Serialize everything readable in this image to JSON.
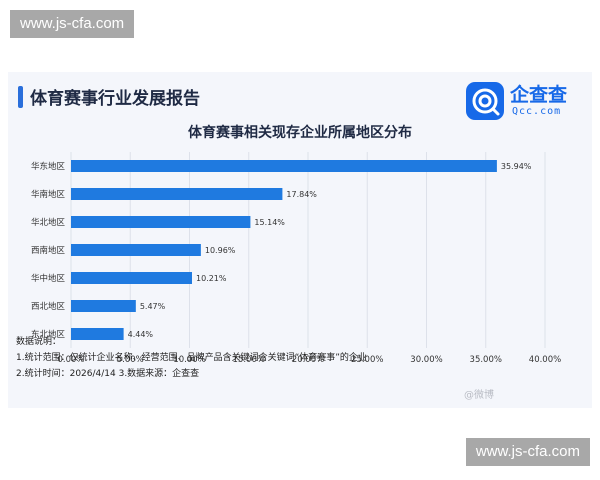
{
  "watermark": {
    "top": "www.js-cfa.com",
    "bottom": "www.js-cfa.com"
  },
  "report_title": "体育赛事行业发展报告",
  "logo": {
    "name": "企查查",
    "sub": "Qcc.com"
  },
  "chart_data": {
    "type": "bar",
    "orientation": "horizontal",
    "title": "体育赛事相关现存企业所属地区分布",
    "categories": [
      "华东地区",
      "华南地区",
      "华北地区",
      "西南地区",
      "华中地区",
      "西北地区",
      "东北地区"
    ],
    "values": [
      35.94,
      17.84,
      15.14,
      10.96,
      10.21,
      5.47,
      4.44
    ],
    "value_labels": [
      "35.94%",
      "17.84%",
      "15.14%",
      "10.96%",
      "10.21%",
      "5.47%",
      "4.44%"
    ],
    "xlim": [
      0,
      40
    ],
    "xticks": [
      0,
      5,
      10,
      15,
      20,
      25,
      30,
      35,
      40
    ],
    "xtick_labels": [
      "0.00%",
      "5.00%",
      "10.00%",
      "15.00%",
      "20.00%",
      "25.00%",
      "30.00%",
      "35.00%",
      "40.00%"
    ],
    "grid": true,
    "bar_color": "#1f7ae0"
  },
  "notes": {
    "heading": "数据说明：",
    "line1": "1.统计范围：仅统计企业名称、经营范围、品牌产品含关键词含关键词“体育赛事”的企业",
    "line2": "2.统计时间：2026/4/14 3.数据来源：企查查"
  },
  "weibo_mark": "@微博"
}
